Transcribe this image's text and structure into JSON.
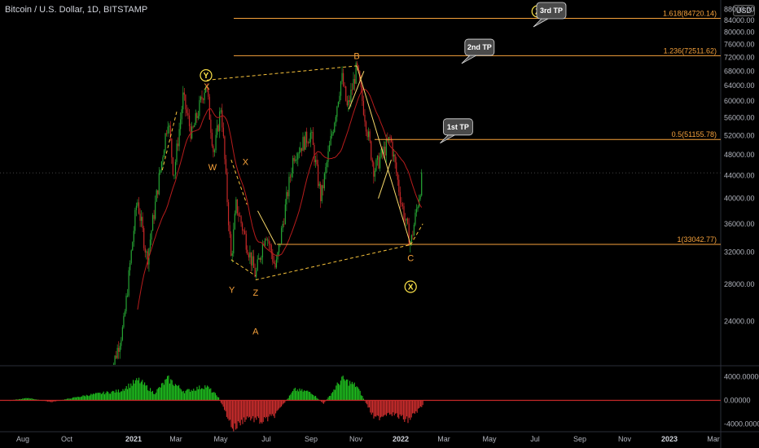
{
  "header": {
    "symbol_title": "Bitcoin / U.S. Dollar, 1D, BITSTAMP",
    "currency": "USD"
  },
  "colors": {
    "background": "#000000",
    "fib": "#f7a23b",
    "wave_label": "#f7a23b",
    "circle": "#ffe54a",
    "up": "#26a534",
    "down": "#c62828",
    "ma": "#b71c1c",
    "callout": "#4a4a4a"
  },
  "chart_data": {
    "type": "candlestick",
    "y_axis": {
      "ticks": [
        "88000.00",
        "84000.00",
        "80000.00",
        "76000.00",
        "72000.00",
        "68000.00",
        "64000.00",
        "60000.00",
        "56000.00",
        "52000.00",
        "48000.00",
        "44000.00",
        "40000.00",
        "36000.00",
        "32000.00",
        "28000.00",
        "24000.00"
      ],
      "ylim": [
        20000,
        89000
      ]
    },
    "x_axis": {
      "ticks": [
        "Aug",
        "Oct",
        "2021",
        "Mar",
        "May",
        "Jul",
        "Sep",
        "Nov",
        "2022",
        "Mar",
        "May",
        "Jul",
        "Sep",
        "Nov",
        "2023",
        "Mar"
      ]
    },
    "price_path": [
      {
        "x": "2020-12-01",
        "y": 19000
      },
      {
        "x": "2020-12-20",
        "y": 23500
      },
      {
        "x": "2021-01-08",
        "y": 40000
      },
      {
        "x": "2021-01-22",
        "y": 31000
      },
      {
        "x": "2021-02-20",
        "y": 56000
      },
      {
        "x": "2021-02-28",
        "y": 44000
      },
      {
        "x": "2021-03-13",
        "y": 61000
      },
      {
        "x": "2021-03-25",
        "y": 52000
      },
      {
        "x": "2021-04-14",
        "y": 64800
      },
      {
        "x": "2021-04-25",
        "y": 48000
      },
      {
        "x": "2021-05-05",
        "y": 59000
      },
      {
        "x": "2021-05-19",
        "y": 31000
      },
      {
        "x": "2021-05-26",
        "y": 39000
      },
      {
        "x": "2021-06-22",
        "y": 29000
      },
      {
        "x": "2021-07-06",
        "y": 35000
      },
      {
        "x": "2021-07-20",
        "y": 29800
      },
      {
        "x": "2021-08-14",
        "y": 48000
      },
      {
        "x": "2021-09-07",
        "y": 52500
      },
      {
        "x": "2021-09-21",
        "y": 40000
      },
      {
        "x": "2021-10-20",
        "y": 66500
      },
      {
        "x": "2021-10-28",
        "y": 58000
      },
      {
        "x": "2021-11-10",
        "y": 69000
      },
      {
        "x": "2021-12-04",
        "y": 45000
      },
      {
        "x": "2021-12-27",
        "y": 51500
      },
      {
        "x": "2022-01-10",
        "y": 40000
      },
      {
        "x": "2022-01-24",
        "y": 33000
      },
      {
        "x": "2022-02-10",
        "y": 44500
      }
    ],
    "fib_levels": [
      {
        "label": "1.618(84720.14)",
        "value": 84720.14
      },
      {
        "label": "1.236(72511.62)",
        "value": 72511.62
      },
      {
        "label": "0.5(51155.78)",
        "value": 51155.78
      },
      {
        "label": "1(33042.77)",
        "value": 33042.77
      }
    ],
    "wave_labels": [
      {
        "text": "X",
        "x": "2021-04-15",
        "y": 63000
      },
      {
        "text": "W",
        "x": "2021-04-23",
        "y": 45000
      },
      {
        "text": "X",
        "x": "2021-06-08",
        "y": 46000
      },
      {
        "text": "Y",
        "x": "2021-05-20",
        "y": 27000
      },
      {
        "text": "Z",
        "x": "2021-06-22",
        "y": 26700
      },
      {
        "text": "A",
        "x": "2021-06-22",
        "y": 22700
      },
      {
        "text": "B",
        "x": "2021-11-10",
        "y": 71500
      },
      {
        "text": "C",
        "x": "2022-01-24",
        "y": 30800
      }
    ],
    "circled_labels": [
      {
        "text": "Y",
        "x": "2021-04-14",
        "y": 66800
      },
      {
        "text": "X",
        "x": "2022-01-24",
        "y": 27700
      },
      {
        "text": "Z",
        "x": "2022-07-20",
        "y": 87200
      }
    ],
    "callouts": [
      {
        "text": "3rd TP",
        "x": "2022-08-08",
        "y": 87500
      },
      {
        "text": "2nd TP",
        "x": "2022-04-30",
        "y": 75100
      },
      {
        "text": "1st TP",
        "x": "2022-03-31",
        "y": 53900
      }
    ],
    "oscillator": {
      "ticks": [
        "4000.00000",
        "0.00000",
        "-4000.00000"
      ],
      "ylim": [
        -5000,
        5000
      ],
      "path": [
        {
          "x": "2020-07-15",
          "y": 0
        },
        {
          "x": "2020-08-10",
          "y": 400
        },
        {
          "x": "2020-09-10",
          "y": -300
        },
        {
          "x": "2020-10-01",
          "y": 200
        },
        {
          "x": "2020-11-01",
          "y": 900
        },
        {
          "x": "2020-12-15",
          "y": 1600
        },
        {
          "x": "2021-01-10",
          "y": 3400
        },
        {
          "x": "2021-02-01",
          "y": 1200
        },
        {
          "x": "2021-02-20",
          "y": 3600
        },
        {
          "x": "2021-03-15",
          "y": 1500
        },
        {
          "x": "2021-04-14",
          "y": 2400
        },
        {
          "x": "2021-05-01",
          "y": 600
        },
        {
          "x": "2021-05-22",
          "y": -4800
        },
        {
          "x": "2021-06-10",
          "y": -2800
        },
        {
          "x": "2021-07-01",
          "y": -3600
        },
        {
          "x": "2021-07-20",
          "y": -2400
        },
        {
          "x": "2021-08-15",
          "y": 1800
        },
        {
          "x": "2021-09-07",
          "y": 1400
        },
        {
          "x": "2021-09-25",
          "y": -600
        },
        {
          "x": "2021-10-20",
          "y": 3600
        },
        {
          "x": "2021-11-10",
          "y": 2400
        },
        {
          "x": "2021-12-05",
          "y": -3200
        },
        {
          "x": "2021-12-25",
          "y": -2000
        },
        {
          "x": "2022-01-20",
          "y": -3400
        },
        {
          "x": "2022-02-10",
          "y": -800
        }
      ]
    }
  }
}
